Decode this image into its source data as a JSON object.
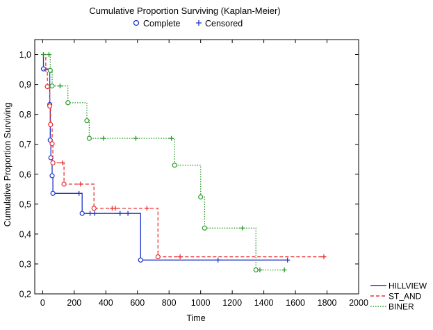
{
  "chart_data": {
    "type": "line",
    "subtype": "kaplan-meier step",
    "title": "Cumulative Proportion Surviving (Kaplan-Meier)",
    "xlabel": "Time",
    "ylabel": "Cumulative Proportion Surviving",
    "xlim": [
      -50,
      2000
    ],
    "ylim": [
      0.2,
      1.05
    ],
    "x_ticks": [
      0,
      200,
      400,
      600,
      800,
      1000,
      1200,
      1400,
      1600,
      1800,
      2000
    ],
    "x_tick_labels": [
      "0",
      "200",
      "400",
      "600",
      "800",
      "1000",
      "1200",
      "1400",
      "1600",
      "1800",
      "2000"
    ],
    "y_ticks": [
      0.2,
      0.3,
      0.4,
      0.5,
      0.6,
      0.7,
      0.8,
      0.9,
      1.0
    ],
    "y_tick_labels": [
      "0,2",
      "0,3",
      "0,4",
      "0,5",
      "0,6",
      "0,7",
      "0,8",
      "0,9",
      "1,0"
    ],
    "grid": false,
    "marker_legend": {
      "complete_label": "Complete",
      "censored_label": "Censored",
      "complete_symbol": "o",
      "censored_symbol": "+",
      "placement": "top-center"
    },
    "legend_placement": "bottom-right",
    "series": [
      {
        "name": "HILLVIEW",
        "color": "#1f35c8",
        "dash": "solid",
        "steps": [
          {
            "x": 0,
            "y": 1.0
          },
          {
            "x": 5,
            "y": 0.952
          },
          {
            "x": 45,
            "y": 0.833
          },
          {
            "x": 48,
            "y": 0.714
          },
          {
            "x": 52,
            "y": 0.655
          },
          {
            "x": 60,
            "y": 0.595
          },
          {
            "x": 65,
            "y": 0.536
          },
          {
            "x": 250,
            "y": 0.469
          },
          {
            "x": 620,
            "y": 0.313
          },
          {
            "x": 1550,
            "y": 0.313
          }
        ],
        "complete": [
          {
            "x": 5,
            "y": 0.952
          },
          {
            "x": 45,
            "y": 0.833
          },
          {
            "x": 48,
            "y": 0.714
          },
          {
            "x": 52,
            "y": 0.655
          },
          {
            "x": 60,
            "y": 0.595
          },
          {
            "x": 65,
            "y": 0.536
          },
          {
            "x": 250,
            "y": 0.469
          },
          {
            "x": 620,
            "y": 0.313
          }
        ],
        "censored": [
          {
            "x": 230,
            "y": 0.536
          },
          {
            "x": 300,
            "y": 0.469
          },
          {
            "x": 330,
            "y": 0.469
          },
          {
            "x": 490,
            "y": 0.469
          },
          {
            "x": 540,
            "y": 0.469
          },
          {
            "x": 1110,
            "y": 0.313
          },
          {
            "x": 1550,
            "y": 0.313
          }
        ]
      },
      {
        "name": "ST_AND",
        "color": "#e83030",
        "dash": "dashed",
        "steps": [
          {
            "x": 0,
            "y": 1.0
          },
          {
            "x": 20,
            "y": 0.95
          },
          {
            "x": 30,
            "y": 0.893
          },
          {
            "x": 45,
            "y": 0.828
          },
          {
            "x": 50,
            "y": 0.766
          },
          {
            "x": 60,
            "y": 0.702
          },
          {
            "x": 65,
            "y": 0.638
          },
          {
            "x": 135,
            "y": 0.567
          },
          {
            "x": 325,
            "y": 0.486
          },
          {
            "x": 730,
            "y": 0.324
          },
          {
            "x": 1780,
            "y": 0.324
          }
        ],
        "complete": [
          {
            "x": 30,
            "y": 0.893
          },
          {
            "x": 45,
            "y": 0.828
          },
          {
            "x": 50,
            "y": 0.766
          },
          {
            "x": 60,
            "y": 0.702
          },
          {
            "x": 65,
            "y": 0.638
          },
          {
            "x": 135,
            "y": 0.567
          },
          {
            "x": 325,
            "y": 0.486
          },
          {
            "x": 730,
            "y": 0.324
          }
        ],
        "censored": [
          {
            "x": 20,
            "y": 0.95
          },
          {
            "x": 125,
            "y": 0.638
          },
          {
            "x": 240,
            "y": 0.567
          },
          {
            "x": 440,
            "y": 0.486
          },
          {
            "x": 460,
            "y": 0.486
          },
          {
            "x": 660,
            "y": 0.486
          },
          {
            "x": 870,
            "y": 0.324
          },
          {
            "x": 1780,
            "y": 0.324
          }
        ]
      },
      {
        "name": "BINER",
        "color": "#2a9a2a",
        "dash": "dotted",
        "steps": [
          {
            "x": 0,
            "y": 1.0
          },
          {
            "x": 48,
            "y": 0.947
          },
          {
            "x": 60,
            "y": 0.895
          },
          {
            "x": 160,
            "y": 0.839
          },
          {
            "x": 280,
            "y": 0.779
          },
          {
            "x": 295,
            "y": 0.72
          },
          {
            "x": 835,
            "y": 0.63
          },
          {
            "x": 1000,
            "y": 0.524
          },
          {
            "x": 1025,
            "y": 0.42
          },
          {
            "x": 1350,
            "y": 0.28
          },
          {
            "x": 1530,
            "y": 0.28
          }
        ],
        "complete": [
          {
            "x": 48,
            "y": 0.947
          },
          {
            "x": 60,
            "y": 0.895
          },
          {
            "x": 160,
            "y": 0.839
          },
          {
            "x": 280,
            "y": 0.779
          },
          {
            "x": 295,
            "y": 0.72
          },
          {
            "x": 835,
            "y": 0.63
          },
          {
            "x": 1000,
            "y": 0.524
          },
          {
            "x": 1025,
            "y": 0.42
          },
          {
            "x": 1350,
            "y": 0.28
          }
        ],
        "censored": [
          {
            "x": 5,
            "y": 1.0
          },
          {
            "x": 40,
            "y": 1.0
          },
          {
            "x": 110,
            "y": 0.895
          },
          {
            "x": 385,
            "y": 0.72
          },
          {
            "x": 590,
            "y": 0.72
          },
          {
            "x": 815,
            "y": 0.72
          },
          {
            "x": 1265,
            "y": 0.42
          },
          {
            "x": 1375,
            "y": 0.28
          },
          {
            "x": 1530,
            "y": 0.28
          }
        ]
      }
    ]
  }
}
